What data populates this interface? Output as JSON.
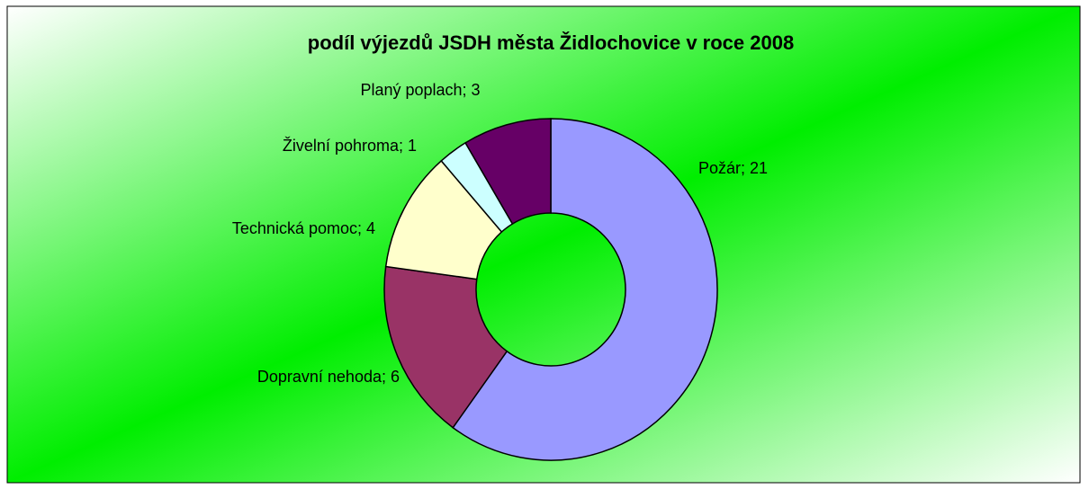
{
  "chart_data": {
    "type": "donut",
    "title": "podíl výjezdů JSDH města Židlochovice v roce 2008",
    "values": [
      21,
      6,
      4,
      1,
      3
    ],
    "value_labels": [
      "Požár; 21",
      "Dopravní nehoda; 6",
      "Technická pomoc; 4",
      "Živelní pohroma; 1",
      "Planý poplach; 3"
    ],
    "colors": [
      "#9999ff",
      "#993366",
      "#ffffcc",
      "#ccffff",
      "#660066"
    ]
  }
}
